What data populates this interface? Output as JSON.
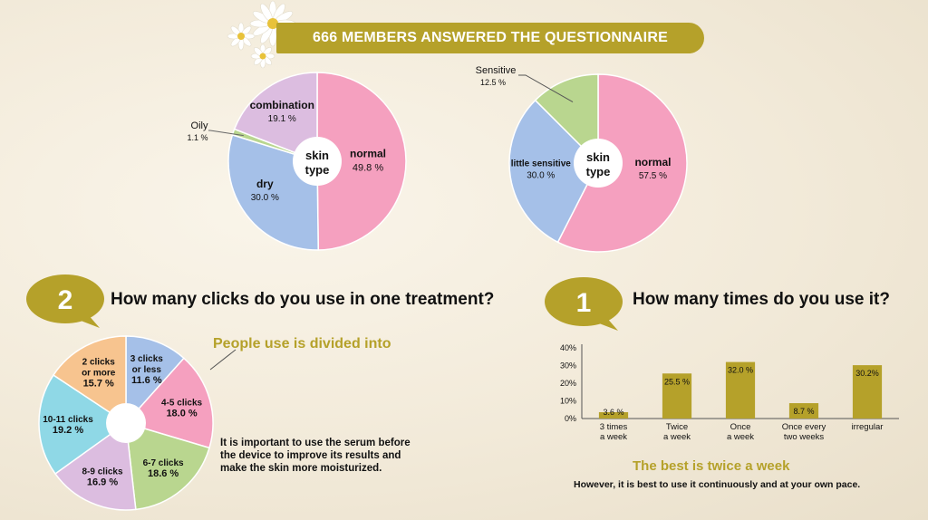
{
  "header": {
    "title": "666 MEMBERS ANSWERED THE QUESTIONNAIRE"
  },
  "sections": {
    "clicks": {
      "number": "2",
      "question": "How many clicks do you use in one treatment?"
    },
    "frequency": {
      "number": "1",
      "question": "How many times do you use it?"
    }
  },
  "notes": {
    "people_use": "People use is divided into",
    "serum": "It is important to use the serum before the device to improve its results and make the skin more moisturized.",
    "best_title": "The best is twice a week",
    "best_sub": "However, it is best to use it continuously and at your own pace."
  },
  "chart_data": [
    {
      "type": "pie",
      "center_label": [
        "skin",
        "type"
      ],
      "slices": [
        {
          "label": "normal",
          "value": 49.8,
          "display": "49.8 %",
          "color": "#f5a0bf"
        },
        {
          "label": "dry",
          "value": 30.0,
          "display": "30.0 %",
          "color": "#a5c0e8"
        },
        {
          "label": "Oily",
          "value": 1.1,
          "display": "1.1 %",
          "color": "#b9d68f"
        },
        {
          "label": "combination",
          "value": 19.1,
          "display": "19.1 %",
          "color": "#dcbde0"
        }
      ]
    },
    {
      "type": "pie",
      "center_label": [
        "skin",
        "type"
      ],
      "slices": [
        {
          "label": "normal",
          "value": 57.5,
          "display": "57.5 %",
          "color": "#f5a0bf"
        },
        {
          "label": "little sensitive",
          "value": 30.0,
          "display": "30.0 %",
          "color": "#a5c0e8"
        },
        {
          "label": "Sensitive",
          "value": 12.5,
          "display": "12.5 %",
          "color": "#b9d68f"
        }
      ]
    },
    {
      "type": "pie",
      "slices": [
        {
          "label": [
            "3 clicks",
            "or less"
          ],
          "value": 11.6,
          "display": "11.6 %",
          "color": "#a5c0e8"
        },
        {
          "label": [
            "4-5 clicks"
          ],
          "value": 18.0,
          "display": "18.0 %",
          "color": "#f5a0bf"
        },
        {
          "label": [
            "6-7 clicks"
          ],
          "value": 18.6,
          "display": "18.6 %",
          "color": "#b9d68f"
        },
        {
          "label": [
            "8-9 clicks"
          ],
          "value": 16.9,
          "display": "16.9 %",
          "color": "#dcbde0"
        },
        {
          "label": [
            "10-11 clicks"
          ],
          "value": 19.2,
          "display": "19.2 %",
          "color": "#8fd8e6"
        },
        {
          "label": [
            "2 clicks",
            "or more"
          ],
          "value": 15.7,
          "display": "15.7 %",
          "color": "#f7c48f"
        }
      ]
    },
    {
      "type": "bar",
      "categories": [
        [
          "3 times",
          "a week"
        ],
        [
          "Twice",
          "a week"
        ],
        [
          "Once",
          "a week"
        ],
        [
          "Once every",
          "two weeks"
        ],
        [
          "irregular"
        ]
      ],
      "values": [
        3.6,
        25.5,
        32.0,
        8.7,
        30.2
      ],
      "value_labels": [
        "3.6 %",
        "25.5 %",
        "32.0 %",
        "8.7 %",
        "30.2%"
      ],
      "yticks": [
        "0%",
        "10%",
        "20%",
        "30%",
        "40%"
      ],
      "ylim": [
        0,
        40
      ],
      "color": "#b5a12a"
    }
  ]
}
